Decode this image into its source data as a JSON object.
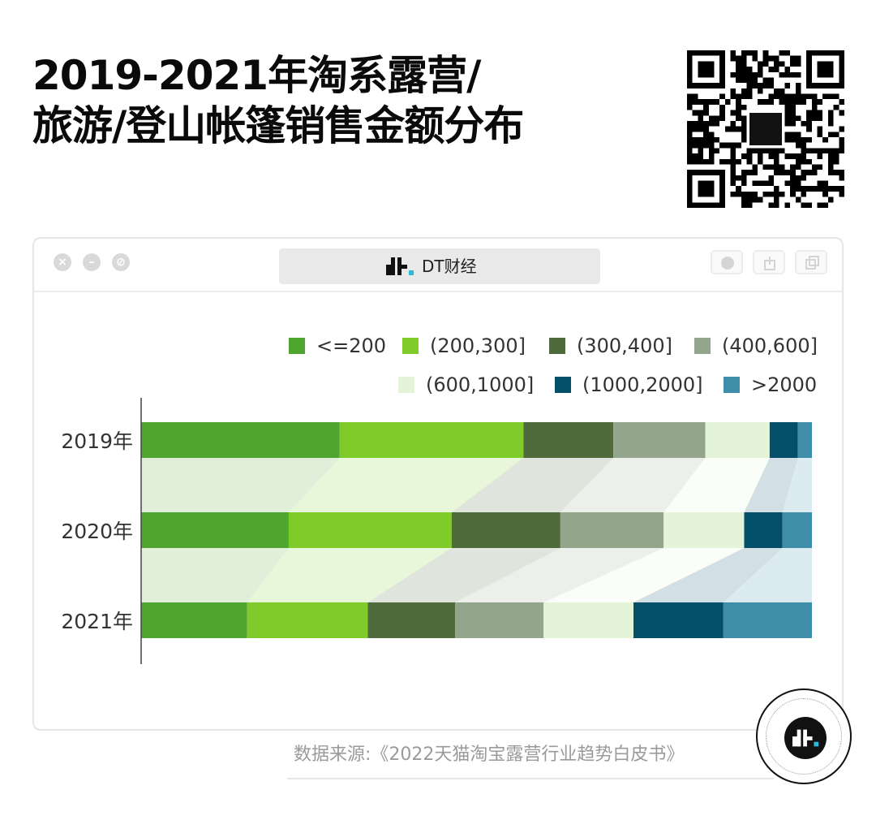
{
  "title": {
    "line1": "2019-2021年淘系露营/",
    "line2": "旅游/登山帐篷销售金额分布"
  },
  "window": {
    "address_text": "DT财经"
  },
  "brand": {
    "name": "DT财经",
    "logo_icon": "dt-logo-icon"
  },
  "source": "数据来源:《2022天猫淘宝露营行业趋势白皮书》",
  "colors": {
    "series": [
      "#4ea62e",
      "#7ecb2a",
      "#4f6b3c",
      "#93a58a",
      "#e3f4d8",
      "#04506b",
      "#3f8ea9"
    ]
  },
  "chart_data": {
    "type": "bar",
    "orientation": "horizontal",
    "stacked": true,
    "normalized": true,
    "categories": [
      "2019年",
      "2020年",
      "2021年"
    ],
    "series": [
      {
        "name": "<=200",
        "values": [
          29.6,
          22.0,
          15.8
        ]
      },
      {
        "name": "(200,300]",
        "values": [
          27.4,
          24.3,
          18.0
        ]
      },
      {
        "name": "(300,400]",
        "values": [
          13.4,
          16.2,
          13.0
        ]
      },
      {
        "name": "(400,600]",
        "values": [
          13.7,
          15.4,
          13.2
        ]
      },
      {
        "name": "(600,1000]",
        "values": [
          9.6,
          12.0,
          13.4
        ]
      },
      {
        "name": "(1000,2000]",
        "values": [
          4.2,
          5.7,
          13.4
        ]
      },
      {
        "name": ">2000",
        "values": [
          2.1,
          4.4,
          13.2
        ]
      }
    ],
    "xlim": [
      0,
      100
    ],
    "legend_position": "top-right",
    "grid": false
  }
}
